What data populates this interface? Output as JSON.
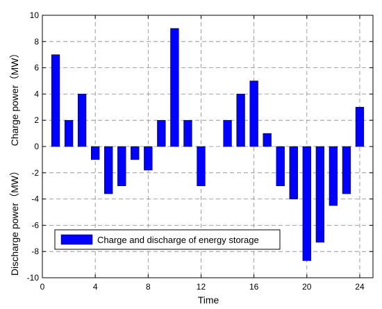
{
  "chart_data": {
    "type": "bar",
    "xlabel": "Time",
    "ylabel_top": "Charge power（MW）",
    "ylabel_bottom": "Discharge power（MW）",
    "xlim": [
      0,
      25
    ],
    "ylim": [
      -10,
      10
    ],
    "xticks": [
      0,
      4,
      8,
      12,
      16,
      20,
      24
    ],
    "yticks": [
      -10,
      -8,
      -6,
      -4,
      -2,
      0,
      2,
      4,
      6,
      8,
      10
    ],
    "grid": true,
    "legend": {
      "position": "lower-left",
      "entry": "Charge and discharge of energy storage",
      "color": "#0000ff"
    },
    "series": [
      {
        "name": "Charge and discharge of energy storage",
        "color": "#0000ff",
        "x": [
          1,
          2,
          3,
          4,
          5,
          6,
          7,
          8,
          9,
          10,
          11,
          12,
          13,
          14,
          15,
          16,
          17,
          18,
          19,
          20,
          21,
          22,
          23,
          24
        ],
        "values": [
          7,
          2,
          4,
          -1,
          -3.6,
          -3,
          -1,
          -1.8,
          2,
          9,
          2,
          -3,
          0,
          2,
          4,
          5,
          1,
          -3,
          -4,
          -8.7,
          -7.3,
          -4.5,
          -3.6,
          3
        ]
      }
    ]
  }
}
